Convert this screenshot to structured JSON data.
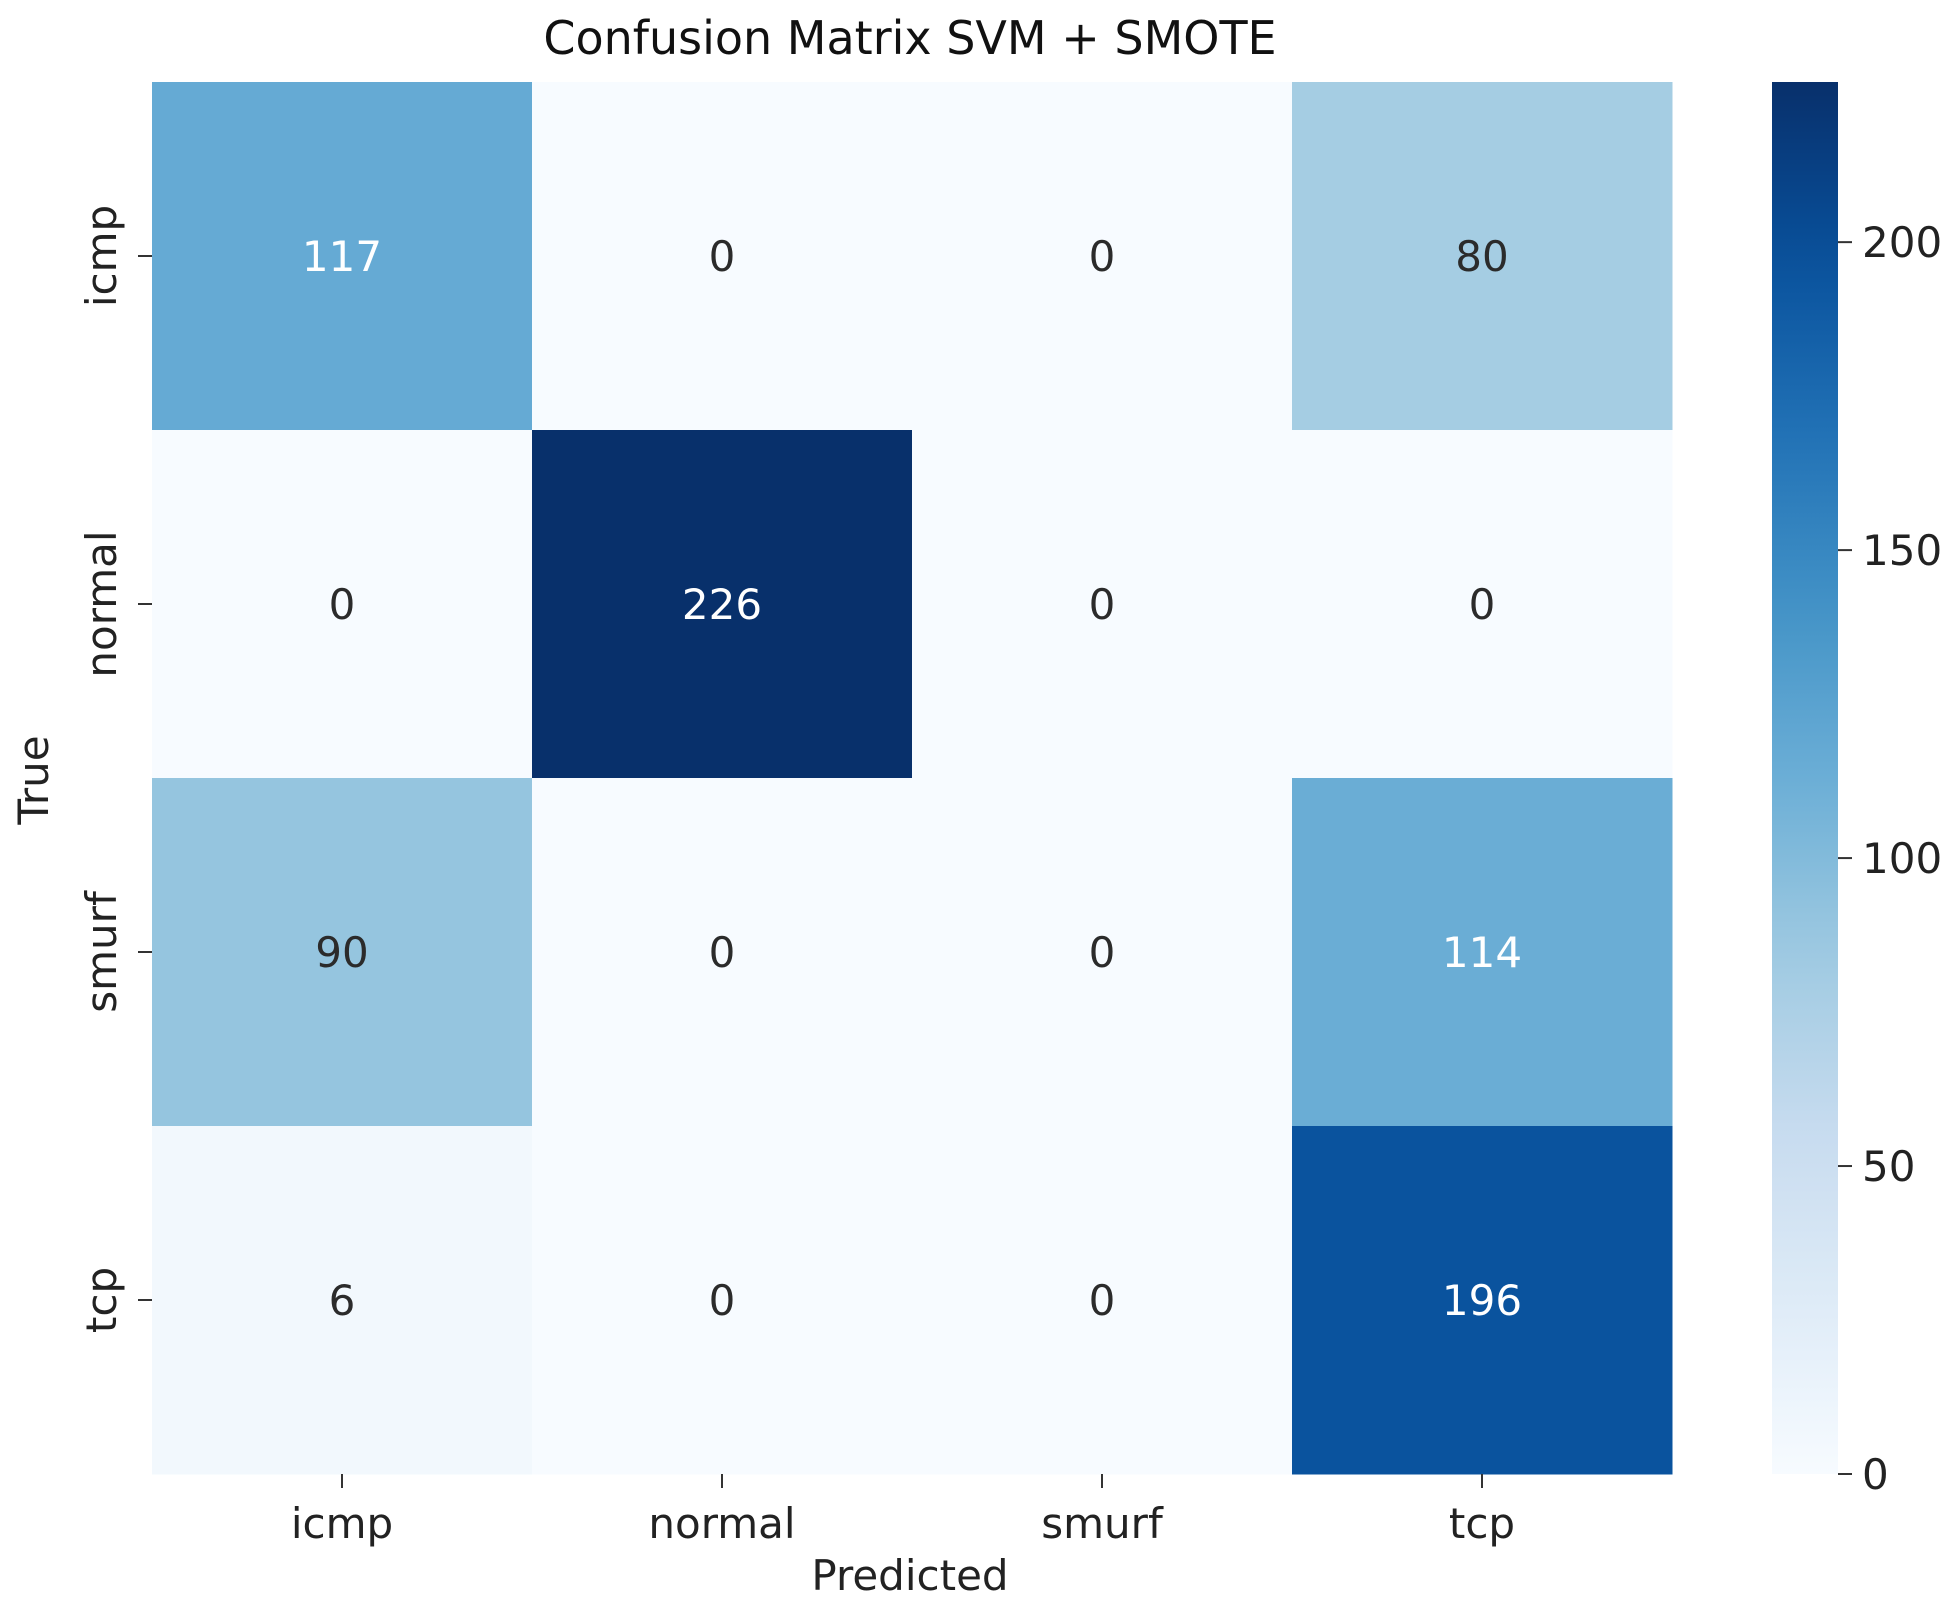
{
  "chart_data": {
    "type": "heatmap",
    "title": "Confusion Matrix SVM + SMOTE",
    "xlabel": "Predicted",
    "ylabel": "True",
    "x_categories": [
      "icmp",
      "normal",
      "smurf",
      "tcp"
    ],
    "y_categories": [
      "icmp",
      "normal",
      "smurf",
      "tcp"
    ],
    "values": [
      [
        117,
        0,
        0,
        80
      ],
      [
        0,
        226,
        0,
        0
      ],
      [
        90,
        0,
        0,
        114
      ],
      [
        6,
        0,
        0,
        196
      ]
    ],
    "colorbar": {
      "colormap": "Blues",
      "range": [
        0,
        226
      ],
      "ticks": [
        0,
        50,
        100,
        150,
        200
      ]
    },
    "colors": {
      "low": "#f7fbff",
      "high": "#08306b"
    }
  }
}
